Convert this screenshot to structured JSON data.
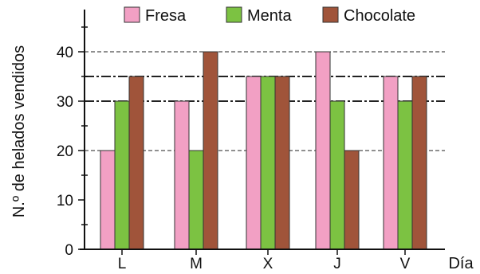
{
  "chart_data": {
    "type": "bar",
    "categories": [
      "L",
      "M",
      "X",
      "J",
      "V"
    ],
    "series": [
      {
        "name": "Fresa",
        "values": [
          20,
          30,
          35,
          40,
          35
        ]
      },
      {
        "name": "Menta",
        "values": [
          30,
          20,
          35,
          30,
          30
        ]
      },
      {
        "name": "Chocolate",
        "values": [
          35,
          40,
          35,
          20,
          35
        ]
      }
    ],
    "xlabel": "Día",
    "ylabel": "N.º de helados vendidos",
    "ylim": [
      0,
      45
    ],
    "yticks": [
      0,
      10,
      20,
      30,
      40
    ],
    "reference_lines": [
      20,
      30,
      35,
      40
    ],
    "legend_position": "top",
    "grid": false,
    "colors": {
      "Fresa": "#f2a0c4",
      "Menta": "#7cc242",
      "Chocolate": "#a0543a"
    }
  }
}
